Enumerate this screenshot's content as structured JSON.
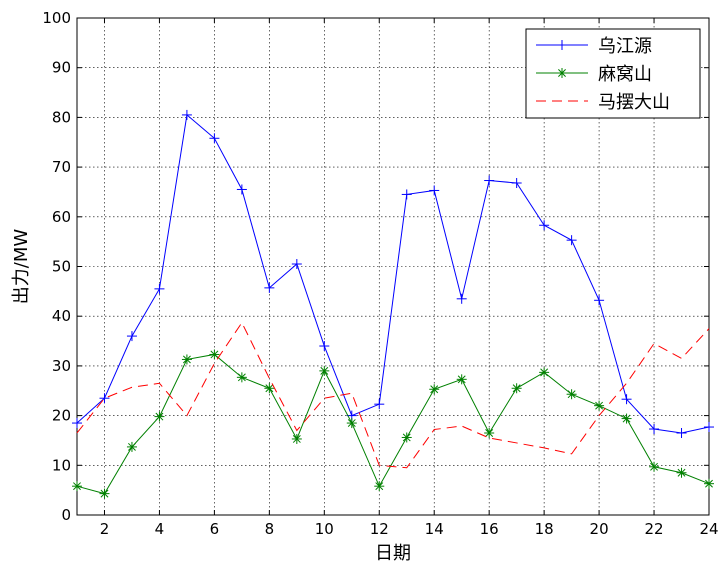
{
  "chart_data": {
    "type": "line",
    "xlabel": "日期",
    "ylabel": "出力/MW",
    "xlim": [
      1,
      24
    ],
    "ylim": [
      0,
      100
    ],
    "xticks": [
      2,
      4,
      6,
      8,
      10,
      12,
      14,
      16,
      18,
      20,
      22,
      24
    ],
    "xtick_labels": [
      "2",
      "4",
      "6",
      "8",
      "10",
      "12",
      "14",
      "16",
      "18",
      "20",
      "22",
      "24"
    ],
    "yticks": [
      0,
      10,
      20,
      30,
      40,
      50,
      60,
      70,
      80,
      90,
      100
    ],
    "ytick_labels": [
      "0",
      "10",
      "20",
      "30",
      "40",
      "50",
      "60",
      "70",
      "80",
      "90",
      "100"
    ],
    "grid": true,
    "legend_position": "top-right",
    "x": [
      1,
      2,
      3,
      4,
      5,
      6,
      7,
      8,
      9,
      10,
      11,
      12,
      13,
      14,
      15,
      16,
      17,
      18,
      19,
      20,
      21,
      22,
      23,
      24
    ],
    "series": [
      {
        "name": "乌江源",
        "color": "#0000ff",
        "line_style": "solid",
        "marker": "plus",
        "values": [
          18.5,
          23.5,
          36,
          45.5,
          80.5,
          75.8,
          65.5,
          45.7,
          50.5,
          34,
          20,
          22.3,
          64.5,
          65.3,
          43.5,
          67.3,
          66.8,
          58.3,
          55.3,
          43.2,
          23.3,
          17.3,
          16.5,
          17.7
        ]
      },
      {
        "name": "麻窝山",
        "color": "#008000",
        "line_style": "solid",
        "marker": "star",
        "values": [
          5.8,
          4.3,
          13.7,
          19.8,
          31.3,
          32.3,
          27.7,
          25.5,
          15.3,
          29,
          18.5,
          5.8,
          15.6,
          25.3,
          27.3,
          16.5,
          25.5,
          28.7,
          24.3,
          22,
          19.4,
          9.7,
          8.5,
          6.3
        ]
      },
      {
        "name": "马摆大山",
        "color": "#ff0000",
        "line_style": "dashed",
        "marker": "none",
        "values": [
          16.5,
          23.5,
          25.7,
          26.5,
          20,
          30.5,
          38.7,
          27.5,
          17,
          23.5,
          24.5,
          10,
          9.5,
          17.2,
          17.9,
          15.5,
          14.5,
          13.5,
          12.3,
          20,
          26.5,
          34.5,
          31.5,
          37.5
        ]
      }
    ]
  }
}
